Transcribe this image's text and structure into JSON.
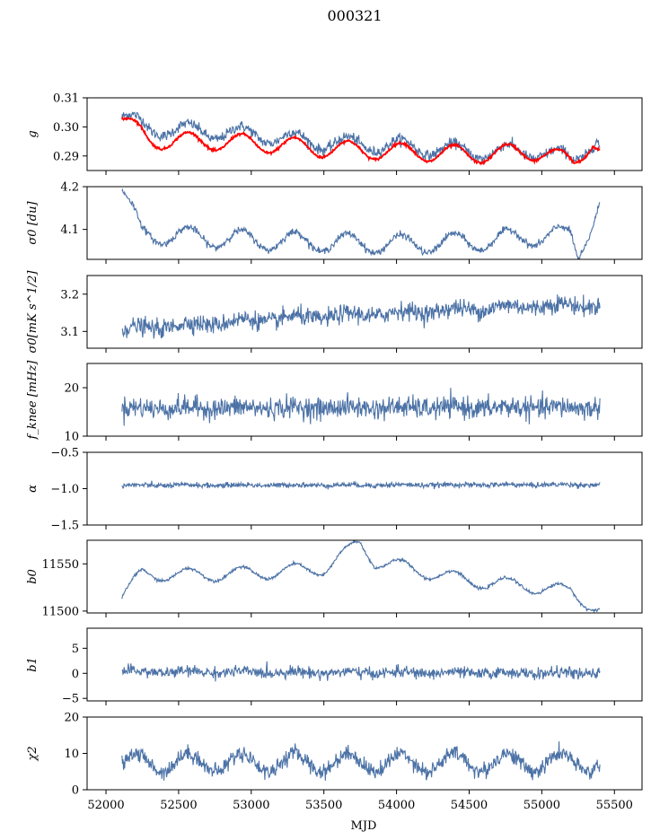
{
  "figure": {
    "title": "000321",
    "xlabel": "MJD",
    "x_ticks": [
      52000,
      52500,
      53000,
      53500,
      54000,
      54500,
      55000,
      55500
    ],
    "x_range": [
      51870,
      55690
    ]
  },
  "colors": {
    "series": "#4c72a6",
    "model": "#ff0000"
  },
  "chart_data": [
    {
      "type": "line",
      "ylabel": "g",
      "ylim": [
        0.285,
        0.31
      ],
      "yticks": [
        0.29,
        0.3,
        0.31
      ],
      "ytick_labels": [
        "0.29",
        "0.30",
        "0.31"
      ],
      "series": [
        {
          "color": "#4c72a6",
          "x_range": [
            52110,
            55400
          ],
          "base": 0.301,
          "end": 0.294,
          "drift": [
            [
              52110,
              0.3035
            ],
            [
              52300,
              0.2995
            ],
            [
              53000,
              0.2975
            ],
            [
              53500,
              0.2945
            ],
            [
              54000,
              0.2935
            ],
            [
              54500,
              0.2915
            ],
            [
              55000,
              0.2915
            ],
            [
              55220,
              0.2885
            ],
            [
              55380,
              0.2965
            ],
            [
              55400,
              0.293
            ]
          ],
          "amp": 0.0025,
          "period": 366,
          "noise": 0.0009
        },
        {
          "color": "#ff0000",
          "x_range": [
            52110,
            55400
          ],
          "drift": [
            [
              52110,
              0.3025
            ],
            [
              52300,
              0.2955
            ],
            [
              53000,
              0.2945
            ],
            [
              53500,
              0.2925
            ],
            [
              54000,
              0.2915
            ],
            [
              54500,
              0.2905
            ],
            [
              55000,
              0.2915
            ],
            [
              55220,
              0.2875
            ],
            [
              55350,
              0.2955
            ],
            [
              55400,
              0.2925
            ]
          ],
          "amp": 0.003,
          "period": 366,
          "noise": 0.0002
        }
      ]
    },
    {
      "type": "line",
      "ylabel": "σ0 [du]",
      "ylim": [
        4.03,
        4.2
      ],
      "yticks": [
        4.1,
        4.2
      ],
      "ytick_labels": [
        "4.1",
        "4.2"
      ],
      "series": [
        {
          "color": "#4c72a6",
          "x_range": [
            52110,
            55400
          ],
          "drift": [
            [
              52110,
              4.19
            ],
            [
              52250,
              4.09
            ],
            [
              52500,
              4.085
            ],
            [
              53000,
              4.075
            ],
            [
              53500,
              4.07
            ],
            [
              54000,
              4.065
            ],
            [
              54500,
              4.07
            ],
            [
              55000,
              4.085
            ],
            [
              55200,
              4.085
            ],
            [
              55250,
              4.04
            ],
            [
              55400,
              4.165
            ]
          ],
          "amp": 0.022,
          "period": 366,
          "noise": 0.004
        }
      ]
    },
    {
      "type": "line",
      "ylabel": "σ0[mK s^1/2]",
      "ylim": [
        3.055,
        3.25
      ],
      "yticks": [
        3.1,
        3.2
      ],
      "ytick_labels": [
        "3.1",
        "3.2"
      ],
      "series": [
        {
          "color": "#4c72a6",
          "x_range": [
            52110,
            55400
          ],
          "drift": [
            [
              52110,
              3.105
            ],
            [
              53000,
              3.13
            ],
            [
              54000,
              3.15
            ],
            [
              55000,
              3.17
            ],
            [
              55400,
              3.17
            ]
          ],
          "amp": 0.006,
          "period": 366,
          "noise": 0.012
        }
      ]
    },
    {
      "type": "line",
      "ylabel": "f_knee [mHz]",
      "ylim": [
        10,
        25
      ],
      "yticks": [
        10,
        20
      ],
      "ytick_labels": [
        "10",
        "20"
      ],
      "series": [
        {
          "color": "#4c72a6",
          "x_range": [
            52110,
            55400
          ],
          "drift": [
            [
              52110,
              15.8
            ],
            [
              55400,
              15.9
            ]
          ],
          "amp": 0.2,
          "period": 366,
          "noise": 1.1
        }
      ]
    },
    {
      "type": "line",
      "ylabel": "α",
      "ylim": [
        -1.5,
        -0.5
      ],
      "yticks": [
        -1.5,
        -1.0,
        -0.5
      ],
      "ytick_labels": [
        "−1.5",
        "−1.0",
        "−0.5"
      ],
      "series": [
        {
          "color": "#4c72a6",
          "x_range": [
            52110,
            55400
          ],
          "drift": [
            [
              52110,
              -0.955
            ],
            [
              55400,
              -0.945
            ]
          ],
          "amp": 0.005,
          "period": 366,
          "noise": 0.018
        }
      ]
    },
    {
      "type": "line",
      "ylabel": "b0",
      "ylim": [
        11498,
        11575
      ],
      "yticks": [
        11500,
        11550
      ],
      "ytick_labels": [
        "11500",
        "11550"
      ],
      "series": [
        {
          "color": "#4c72a6",
          "x_range": [
            52110,
            55400
          ],
          "drift": [
            [
              52110,
              11514
            ],
            [
              52250,
              11540
            ],
            [
              52500,
              11538
            ],
            [
              53000,
              11540
            ],
            [
              53500,
              11545
            ],
            [
              53750,
              11572
            ],
            [
              53850,
              11553
            ],
            [
              54500,
              11532
            ],
            [
              55000,
              11525
            ],
            [
              55200,
              11520
            ],
            [
              55300,
              11510
            ],
            [
              55400,
              11503
            ]
          ],
          "amp": 7,
          "period": 366,
          "noise": 0.8
        }
      ]
    },
    {
      "type": "line",
      "ylabel": "b1",
      "ylim": [
        -5.5,
        9
      ],
      "yticks": [
        -5,
        0,
        5
      ],
      "ytick_labels": [
        "−5",
        "0",
        "5"
      ],
      "series": [
        {
          "color": "#4c72a6",
          "x_range": [
            52110,
            55400
          ],
          "drift": [
            [
              52110,
              0.3
            ],
            [
              55400,
              0.0
            ]
          ],
          "amp": 0.2,
          "period": 366,
          "noise": 0.55
        }
      ]
    },
    {
      "type": "line",
      "ylabel": "χ2",
      "ylim": [
        0,
        20
      ],
      "yticks": [
        0,
        10,
        20
      ],
      "ytick_labels": [
        "0",
        "10",
        "20"
      ],
      "series": [
        {
          "color": "#4c72a6",
          "x_range": [
            52110,
            55400
          ],
          "drift": [
            [
              52110,
              7.5
            ],
            [
              55400,
              7.5
            ]
          ],
          "amp": 2.5,
          "period": 366,
          "noise": 1.1
        }
      ]
    }
  ]
}
